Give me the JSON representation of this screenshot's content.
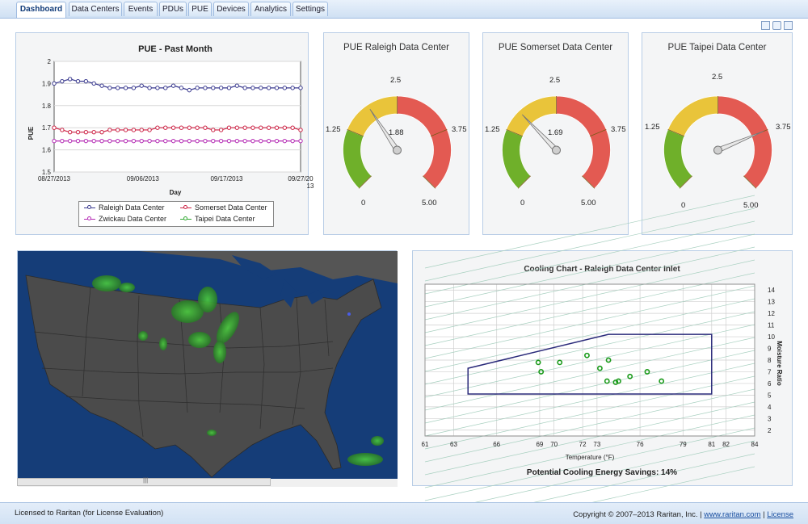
{
  "tabs": [
    {
      "label": "Dashboard",
      "active": true
    },
    {
      "label": "Data Centers"
    },
    {
      "label": "Events"
    },
    {
      "label": "PDUs"
    },
    {
      "label": "PUE"
    },
    {
      "label": "Devices"
    },
    {
      "label": "Analytics"
    },
    {
      "label": "Settings"
    }
  ],
  "toolbar_icons": [
    "window-icon",
    "print-icon",
    "export-icon"
  ],
  "pue_chart": {
    "chart_data": {
      "type": "line",
      "title": "PUE - Past Month",
      "xlabel": "Day",
      "ylabel": "PUE",
      "ylim": [
        1.5,
        2
      ],
      "yticks": [
        "2",
        "1.9",
        "1.8",
        "1.7",
        "1.6",
        "1.5"
      ],
      "xticks": [
        "08/27/2013",
        "09/06/2013",
        "09/17/2013",
        "09/27/20\n13"
      ],
      "grid": true,
      "legend_position": "bottom",
      "series": [
        {
          "name": "Raleigh Data Center",
          "color": "#3a3a8f",
          "values": [
            1.9,
            1.91,
            1.92,
            1.91,
            1.91,
            1.9,
            1.89,
            1.88,
            1.88,
            1.88,
            1.88,
            1.89,
            1.88,
            1.88,
            1.88,
            1.89,
            1.88,
            1.87,
            1.88,
            1.88,
            1.88,
            1.88,
            1.88,
            1.89,
            1.88,
            1.88,
            1.88,
            1.88,
            1.88,
            1.88,
            1.88,
            1.88
          ]
        },
        {
          "name": "Somerset Data Center",
          "color": "#cc2244",
          "values": [
            1.7,
            1.69,
            1.68,
            1.68,
            1.68,
            1.68,
            1.68,
            1.69,
            1.69,
            1.69,
            1.69,
            1.69,
            1.69,
            1.7,
            1.7,
            1.7,
            1.7,
            1.7,
            1.7,
            1.7,
            1.69,
            1.69,
            1.7,
            1.7,
            1.7,
            1.7,
            1.7,
            1.7,
            1.7,
            1.7,
            1.7,
            1.69
          ]
        },
        {
          "name": "Zwickau Data Center",
          "color": "#b42ab4",
          "values": [
            1.64,
            1.64,
            1.64,
            1.64,
            1.64,
            1.64,
            1.64,
            1.64,
            1.64,
            1.64,
            1.64,
            1.64,
            1.64,
            1.64,
            1.64,
            1.64,
            1.64,
            1.64,
            1.64,
            1.64,
            1.64,
            1.64,
            1.64,
            1.64,
            1.64,
            1.64,
            1.64,
            1.64,
            1.64,
            1.64,
            1.64,
            1.64
          ]
        },
        {
          "name": "Taipei Data Center",
          "color": "#33aa33",
          "values": []
        }
      ]
    }
  },
  "gauges": [
    {
      "title": "PUE Raleigh Data Center",
      "value": 1.88,
      "value_label": "1.88",
      "min_label": "0",
      "max_label": "5.00",
      "label_125": "1.25",
      "label_25": "2.5",
      "label_375": "3.75",
      "show_value": true
    },
    {
      "title": "PUE Somerset Data Center",
      "value": 1.69,
      "value_label": "1.69",
      "min_label": "0",
      "max_label": "5.00",
      "label_125": "1.25",
      "label_25": "2.5",
      "label_375": "3.75",
      "show_value": true
    },
    {
      "title": "PUE Taipei Data Center",
      "value": 3.75,
      "value_label": "",
      "min_label": "0",
      "max_label": "5.00",
      "label_125": "1.25",
      "label_25": "2.5",
      "label_375": "3.75",
      "show_value": false
    }
  ],
  "gauge_colors": {
    "green": "#6fb02a",
    "yellow": "#e9c43a",
    "red": "#e35a52"
  },
  "map": {
    "scroll_thumb": "|||"
  },
  "cooling": {
    "chart_data": {
      "type": "scatter",
      "title": "Cooling Chart - Raleigh Data Center Inlet",
      "xlabel": "Temperature (°F)",
      "ylabel": "Moisture Ratio",
      "xlim": [
        61,
        84
      ],
      "ylim": [
        1.5,
        14.5
      ],
      "xticks": [
        "61",
        "63",
        "66",
        "69",
        "70",
        "72",
        "73",
        "76",
        "79",
        "81",
        "82",
        "84"
      ],
      "yticks": [
        "14",
        "13",
        "12",
        "11",
        "10",
        "9",
        "8",
        "7",
        "6",
        "5",
        "4",
        "3",
        "2"
      ],
      "envelope": [
        [
          64,
          5.1
        ],
        [
          64,
          7.3
        ],
        [
          73.8,
          10.2
        ],
        [
          81,
          10.2
        ],
        [
          81,
          5.1
        ]
      ],
      "points": [
        [
          68.9,
          7.8
        ],
        [
          69.1,
          7.0
        ],
        [
          70.4,
          7.8
        ],
        [
          72.3,
          8.4
        ],
        [
          73.2,
          7.3
        ],
        [
          73.7,
          6.2
        ],
        [
          73.8,
          8.0
        ],
        [
          74.3,
          6.1
        ],
        [
          74.5,
          6.2
        ],
        [
          75.3,
          6.6
        ],
        [
          76.5,
          7.0
        ],
        [
          77.5,
          6.2
        ]
      ]
    },
    "savings": "Potential Cooling Energy Savings: 14%"
  },
  "footer": {
    "license": "Licensed to Raritan (for License Evaluation)",
    "copyright": "Copyright © 2007–2013 Raritan, Inc. |",
    "link_site": "www.raritan.com",
    "sep": "|",
    "link_license": "License"
  }
}
